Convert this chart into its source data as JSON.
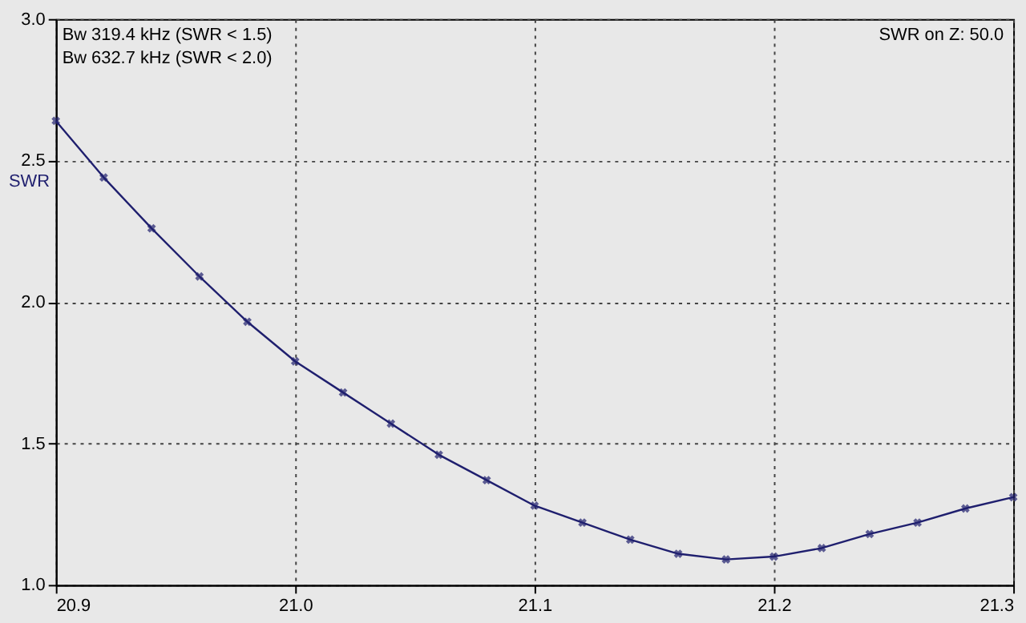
{
  "chart_data": {
    "type": "line",
    "ylabel": "SWR",
    "annotations": [
      "Bw 319.4 kHz (SWR < 1.5)",
      "Bw 632.7 kHz (SWR < 2.0)",
      "SWR on Z: 50.0"
    ],
    "x": [
      20.9,
      20.92,
      20.94,
      20.96,
      20.98,
      21.0,
      21.02,
      21.04,
      21.06,
      21.08,
      21.1,
      21.12,
      21.14,
      21.16,
      21.18,
      21.2,
      21.22,
      21.24,
      21.26,
      21.28,
      21.3
    ],
    "series": [
      {
        "color": "#1f1f6e",
        "values": [
          2.64,
          2.44,
          2.26,
          2.09,
          1.93,
          1.79,
          1.68,
          1.57,
          1.46,
          1.37,
          1.28,
          1.22,
          1.16,
          1.11,
          1.09,
          1.1,
          1.13,
          1.18,
          1.22,
          1.27,
          1.31
        ]
      }
    ],
    "xlim": [
      20.9,
      21.3
    ],
    "xticks": [
      20.9,
      {
        "value": 21,
        "label": "21.0"
      },
      21.1,
      21.2,
      21.3
    ],
    "ylim": [
      1.0,
      3.0
    ],
    "yticks": [
      {
        "value": 1,
        "label": "1.0"
      },
      1.5,
      {
        "value": 2,
        "label": "2.0"
      },
      2.5,
      {
        "value": 3,
        "label": "3.0"
      }
    ],
    "grid": true,
    "marker": "cross",
    "line_style": "solid"
  }
}
